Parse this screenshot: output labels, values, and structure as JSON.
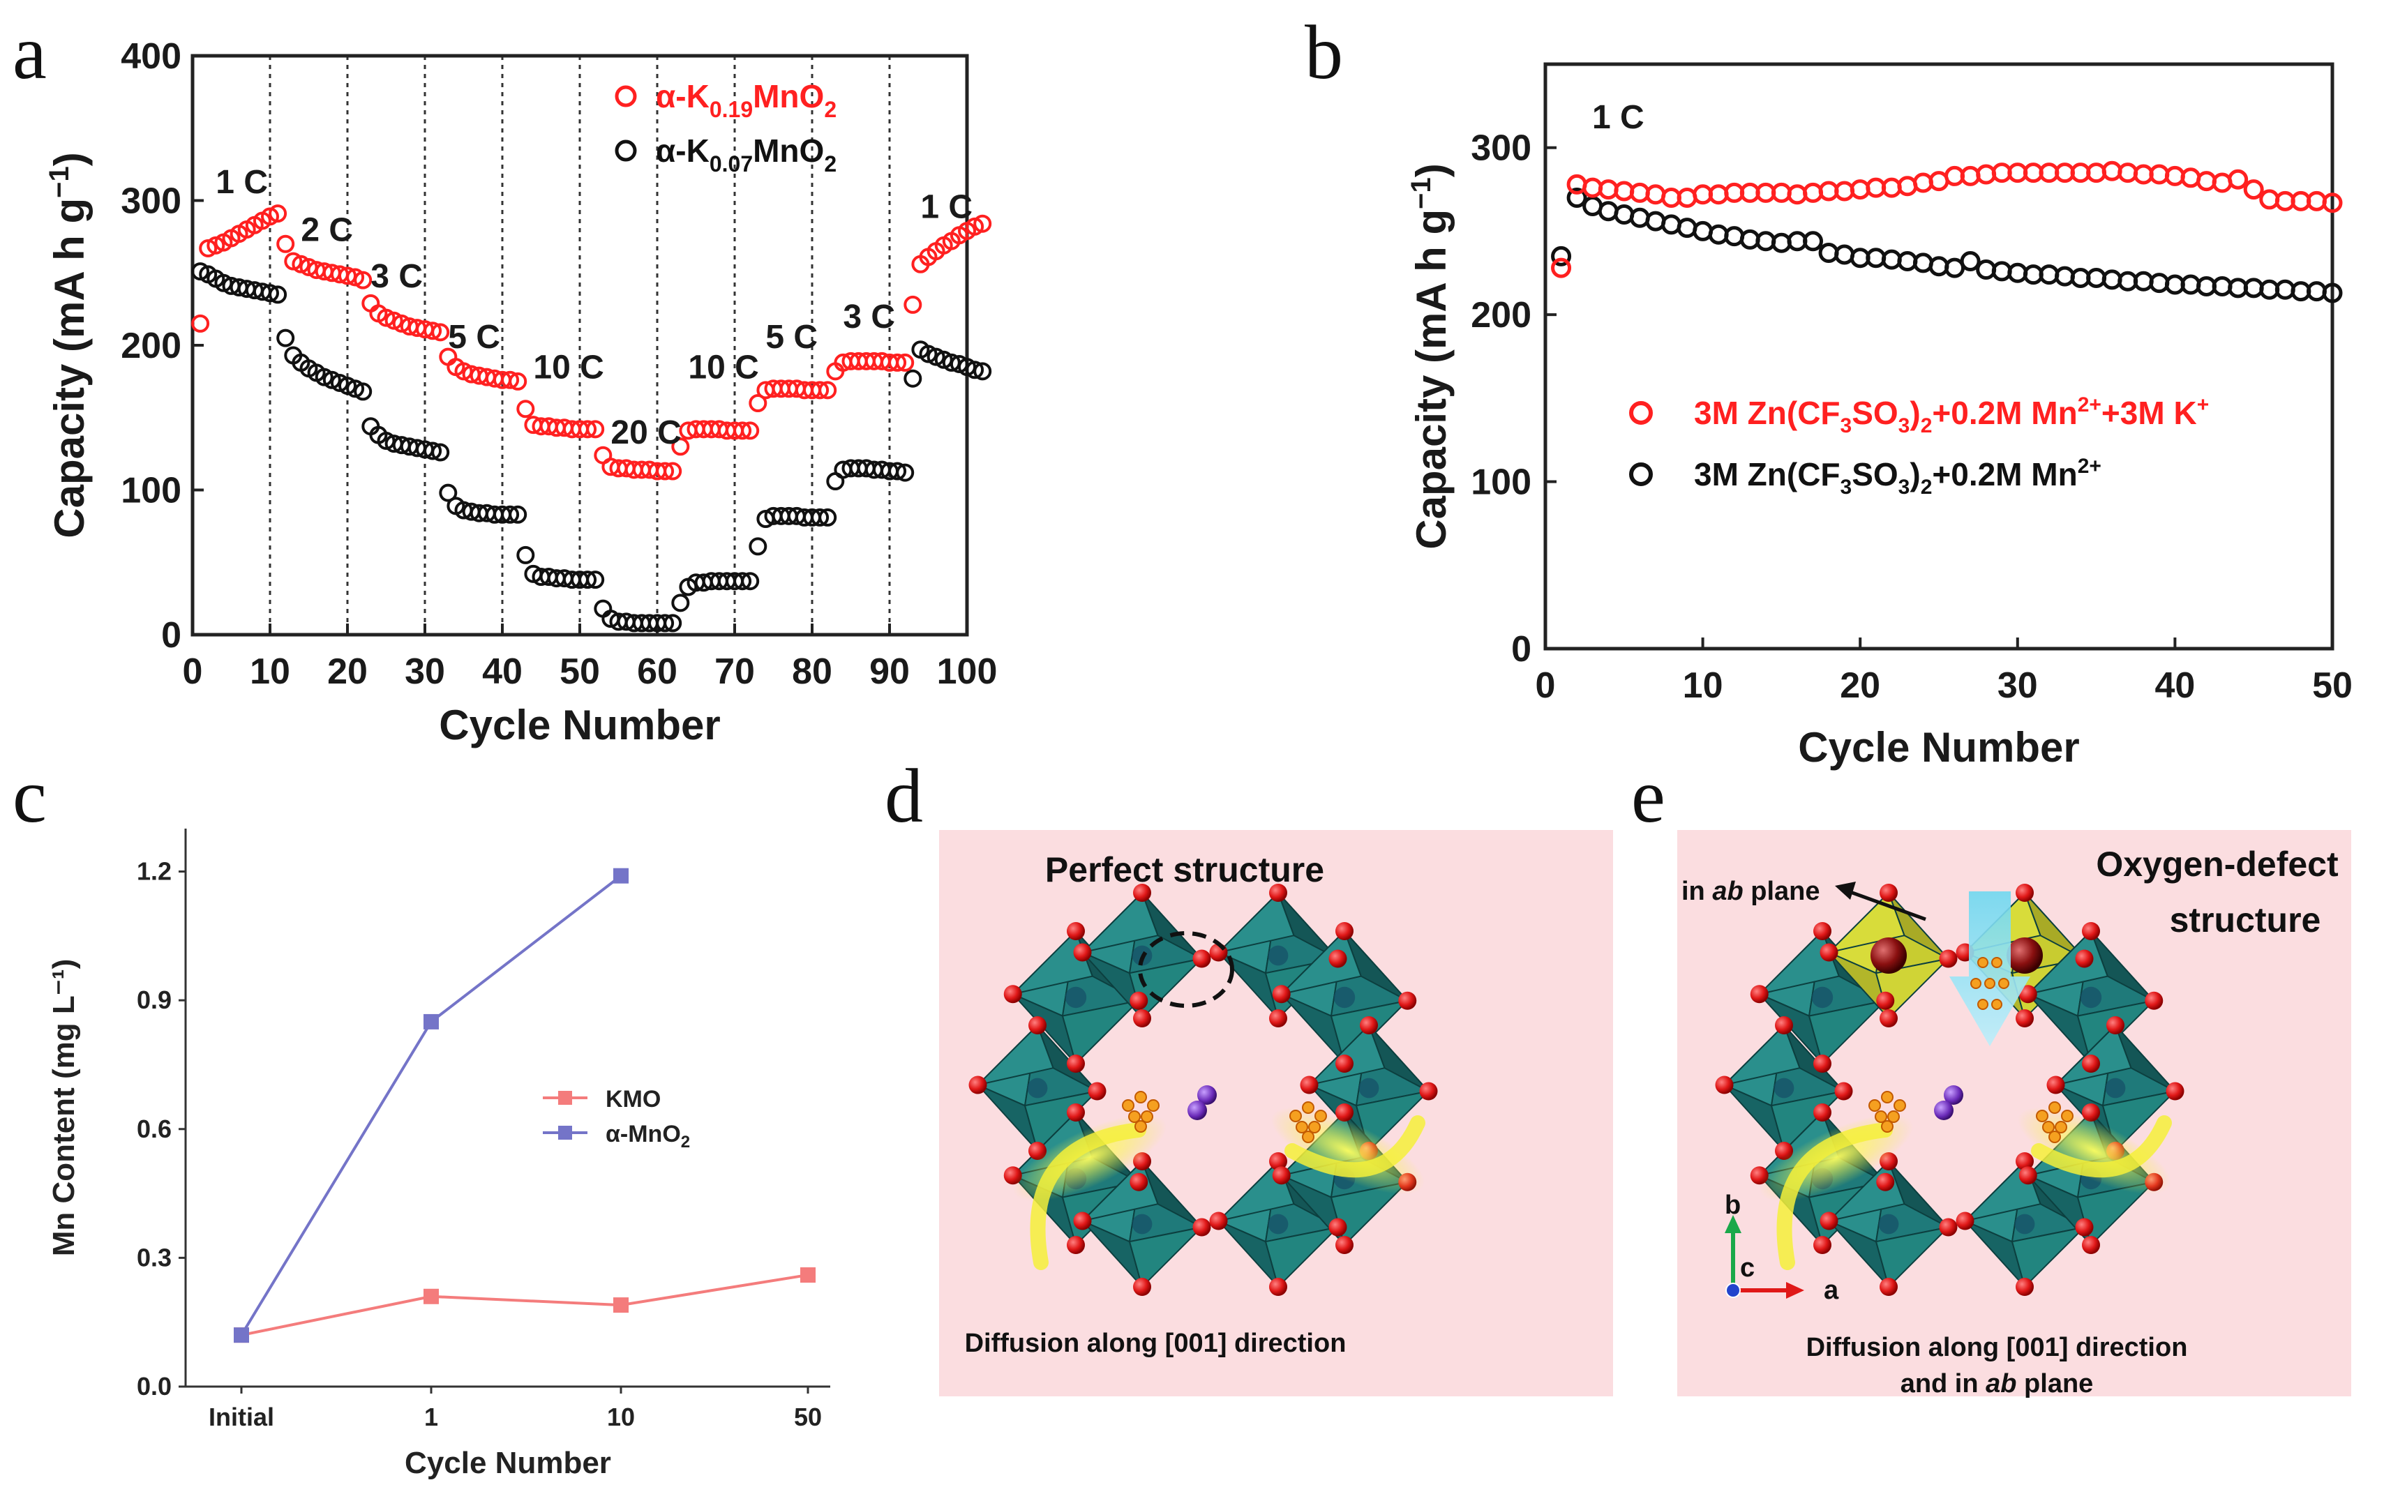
{
  "panels": {
    "a": "a",
    "b": "b",
    "c": "c",
    "d": "d",
    "e": "e"
  },
  "colors": {
    "red": "#ff2020",
    "black": "#111111",
    "kmo": "#f47c7c",
    "amno2": "#7474c8",
    "pink_bg": "#fbdde0",
    "teal": "#1f7a7a",
    "yellow": "#f5f03a",
    "oxygen": "#e01818"
  },
  "chart_data": [
    {
      "panel": "a",
      "type": "scatter",
      "xlabel": "Cycle Number",
      "ylabel": "Capacity (mA h g^-1)",
      "xlim": [
        0,
        100
      ],
      "ylim": [
        0,
        400
      ],
      "xticks": [
        "0",
        "10",
        "20",
        "30",
        "40",
        "50",
        "60",
        "70",
        "80",
        "90",
        "100"
      ],
      "yticks": [
        "0",
        "100",
        "200",
        "300",
        "400"
      ],
      "rate_boundaries": [
        10,
        20,
        30,
        40,
        50,
        60,
        70,
        80,
        90
      ],
      "rate_labels": [
        {
          "text": "1 C",
          "x": 3,
          "y": 305
        },
        {
          "text": "2 C",
          "x": 14,
          "y": 272
        },
        {
          "text": "3 C",
          "x": 23,
          "y": 240
        },
        {
          "text": "5 C",
          "x": 33,
          "y": 198
        },
        {
          "text": "10 C",
          "x": 44,
          "y": 177
        },
        {
          "text": "20 C",
          "x": 54,
          "y": 132
        },
        {
          "text": "10 C",
          "x": 64,
          "y": 177
        },
        {
          "text": "5 C",
          "x": 74,
          "y": 198
        },
        {
          "text": "3 C",
          "x": 84,
          "y": 212
        },
        {
          "text": "1 C",
          "x": 94,
          "y": 288
        }
      ],
      "series": [
        {
          "name": "α-K0.19MnO2",
          "name_base": "α-K",
          "name_sub": "0.19",
          "name_rest": "MnO",
          "name_sub2": "2",
          "color": "#ff2020",
          "values": [
            215,
            267,
            269,
            271,
            274,
            277,
            280,
            283,
            286,
            289,
            291,
            270,
            258,
            256,
            254,
            252,
            251,
            250,
            249,
            248,
            247,
            245,
            229,
            222,
            219,
            217,
            215,
            213,
            212,
            211,
            210,
            209,
            192,
            185,
            182,
            180,
            179,
            178,
            177,
            176,
            176,
            175,
            156,
            145,
            144,
            144,
            143,
            143,
            142,
            142,
            142,
            142,
            124,
            116,
            115,
            115,
            114,
            114,
            114,
            113,
            113,
            113,
            130,
            141,
            142,
            142,
            142,
            142,
            141,
            141,
            141,
            141,
            160,
            169,
            170,
            170,
            170,
            170,
            169,
            169,
            169,
            169,
            182,
            188,
            189,
            189,
            189,
            189,
            189,
            188,
            188,
            188,
            228,
            256,
            261,
            265,
            269,
            272,
            276,
            279,
            282,
            284
          ]
        },
        {
          "name": "α-K0.07MnO2",
          "name_base": "α-K",
          "name_sub": "0.07",
          "name_rest": "MnO",
          "name_sub2": "2",
          "color": "#111111",
          "values": [
            251,
            249,
            246,
            243,
            241,
            240,
            239,
            238,
            237,
            236,
            235,
            205,
            193,
            188,
            184,
            181,
            178,
            176,
            174,
            172,
            170,
            168,
            144,
            138,
            134,
            132,
            131,
            130,
            129,
            128,
            127,
            126,
            98,
            89,
            86,
            85,
            84,
            84,
            83,
            83,
            83,
            83,
            55,
            42,
            40,
            40,
            39,
            39,
            38,
            38,
            38,
            38,
            18,
            11,
            9,
            9,
            8,
            8,
            8,
            8,
            8,
            8,
            22,
            33,
            36,
            36,
            37,
            37,
            37,
            37,
            37,
            37,
            61,
            80,
            82,
            82,
            82,
            82,
            81,
            81,
            81,
            81,
            106,
            114,
            115,
            115,
            115,
            114,
            114,
            113,
            113,
            112,
            177,
            197,
            194,
            192,
            190,
            188,
            187,
            185,
            183,
            182
          ]
        }
      ]
    },
    {
      "panel": "b",
      "type": "scatter",
      "xlabel": "Cycle Number",
      "ylabel": "Capacity (mA h g^-1)",
      "xlim": [
        0,
        50
      ],
      "ylim": [
        0,
        350
      ],
      "xticks": [
        "0",
        "10",
        "20",
        "30",
        "40",
        "50"
      ],
      "yticks": [
        "0",
        "100",
        "200",
        "300"
      ],
      "annotation": "1 C",
      "series": [
        {
          "name": "3M Zn(CF3SO3)2+0.2M Mn2++3M K+",
          "color": "#ff2020",
          "values": [
            228,
            278,
            276,
            275,
            274,
            273,
            272,
            270,
            270,
            272,
            272,
            273,
            273,
            273,
            273,
            272,
            273,
            274,
            274,
            275,
            276,
            276,
            277,
            279,
            280,
            283,
            283,
            284,
            285,
            285,
            285,
            285,
            285,
            285,
            285,
            286,
            285,
            284,
            284,
            283,
            282,
            280,
            279,
            281,
            275,
            269,
            268,
            268,
            268,
            267
          ]
        },
        {
          "name": "3M Zn(CF3SO3)2+0.2M Mn2+",
          "color": "#111111",
          "values": [
            235,
            270,
            265,
            262,
            260,
            258,
            256,
            254,
            252,
            250,
            248,
            247,
            245,
            244,
            243,
            244,
            244,
            237,
            236,
            234,
            234,
            233,
            232,
            231,
            229,
            228,
            232,
            227,
            226,
            225,
            224,
            224,
            223,
            222,
            222,
            221,
            220,
            220,
            219,
            218,
            218,
            217,
            217,
            216,
            216,
            215,
            215,
            214,
            214,
            213
          ]
        }
      ],
      "legend": {
        "red": {
          "a": "3M Zn(CF",
          "b": "3",
          "c": "SO",
          "d": "3",
          "e": ")",
          "f": "2",
          "g": "+0.2M Mn",
          "h": "2+",
          "i": "+3M K",
          "j": "+"
        },
        "black": {
          "a": "3M Zn(CF",
          "b": "3",
          "c": "SO",
          "d": "3",
          "e": ")",
          "f": "2",
          "g": "+0.2M Mn",
          "h": "2+"
        }
      }
    },
    {
      "panel": "c",
      "type": "line",
      "xlabel": "Cycle Number",
      "ylabel": "Mn Content (mg L⁻¹)",
      "categories": [
        "Initial",
        "1",
        "10",
        "50"
      ],
      "yticks": [
        "0.0",
        "0.3",
        "0.6",
        "0.9",
        "1.2"
      ],
      "ylim": [
        0,
        1.3
      ],
      "series": [
        {
          "name": "KMO",
          "color": "#f47c7c",
          "values": [
            0.12,
            0.21,
            0.19,
            0.26
          ]
        },
        {
          "name": "α-MnO₂",
          "name_base": "α-MnO",
          "name_sub": "2",
          "color": "#7474c8",
          "values": [
            0.12,
            0.85,
            1.19,
            null
          ]
        }
      ]
    }
  ],
  "panel_d": {
    "title": "Perfect structure",
    "caption": "Diffusion along [001] direction"
  },
  "panel_e": {
    "title_1": "Oxygen-defect",
    "title_2": "structure",
    "arrow_label_pre": "in ",
    "arrow_label_it": "ab",
    "arrow_label_post": " plane",
    "caption_1": "Diffusion along [001] direction",
    "caption_2_pre": "and in ",
    "caption_2_it": "ab",
    "caption_2_post": " plane",
    "axis_b": "b",
    "axis_a": "a",
    "axis_c": "c"
  }
}
